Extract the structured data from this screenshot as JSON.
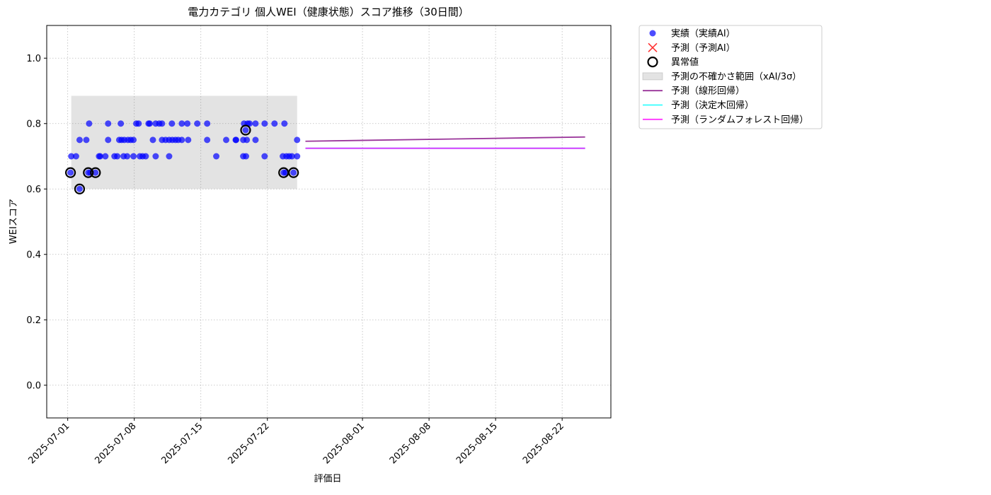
{
  "chart_data": {
    "type": "scatter",
    "title": "電力カテゴリ 個人WEI（健康状態）スコア推移（30日間）",
    "x_label": "評価日",
    "y_label": "WEIスコア",
    "xlim": [
      "2025-06-28 19:00",
      "2025-08-27 03:00"
    ],
    "xticks": [
      "2025-07-01",
      "2025-07-08",
      "2025-07-15",
      "2025-07-22",
      "2025-08-01",
      "2025-08-08",
      "2025-08-15",
      "2025-08-22"
    ],
    "ylim": [
      -0.1,
      1.1
    ],
    "yticks": [
      {
        "value": 0,
        "label": "0.0"
      },
      0.2,
      0.4,
      0.6,
      0.8,
      {
        "value": 1,
        "label": "1.0"
      }
    ],
    "grid": true,
    "legend": "outside upper right",
    "series": [
      {
        "name": "実績（実績AI）",
        "kind": "scatter",
        "color": "#0000ff",
        "x": [
          "2025-07-01 07:00",
          "2025-07-01 09:00",
          "2025-07-01 21:00",
          "2025-07-02 06:00",
          "2025-07-02 06:00",
          "2025-07-02 23:00",
          "2025-07-03 06:00",
          "2025-07-03 04:00",
          "2025-07-03 09:00",
          "2025-07-03 22:00",
          "2025-07-04 07:00",
          "2025-07-04 10:00",
          "2025-07-04 23:00",
          "2025-07-05 06:00",
          "2025-07-05 06:00",
          "2025-07-05 22:00",
          "2025-07-06 05:00",
          "2025-07-06 10:00",
          "2025-07-06 14:00",
          "2025-07-06 16:00",
          "2025-07-06 21:00",
          "2025-07-06 23:00",
          "2025-07-07 06:00",
          "2025-07-07 08:00",
          "2025-07-07 15:00",
          "2025-07-07 22:00",
          "2025-07-07 22:00",
          "2025-07-08 05:00",
          "2025-07-08 11:00",
          "2025-07-08 14:00",
          "2025-07-08 21:00",
          "2025-07-09 05:00",
          "2025-07-09 12:00",
          "2025-07-09 15:00",
          "2025-07-09 23:00",
          "2025-07-10 06:00",
          "2025-07-10 06:00",
          "2025-07-10 15:00",
          "2025-07-10 22:00",
          "2025-07-10 22:00",
          "2025-07-11 07:00",
          "2025-07-11 16:00",
          "2025-07-11 16:00",
          "2025-07-11 23:00",
          "2025-07-12 00:00",
          "2025-07-12 08:00",
          "2025-07-12 15:00",
          "2025-07-13 00:00",
          "2025-07-13 00:00",
          "2025-07-13 14:00",
          "2025-07-13 16:00",
          "2025-07-14 15:00",
          "2025-07-15 16:00",
          "2025-07-15 16:00",
          "2025-07-16 15:00",
          "2025-07-17 16:00",
          "2025-07-18 16:00",
          "2025-07-18 17:00",
          "2025-07-19 11:00",
          "2025-07-19 11:00",
          "2025-07-19 13:00",
          "2025-07-19 17:00",
          "2025-07-19 18:00",
          "2025-07-19 20:00",
          "2025-07-19 22:00",
          "2025-07-20 03:00",
          "2025-07-20 18:00",
          "2025-07-20 18:00",
          "2025-07-21 17:00",
          "2025-07-21 17:00",
          "2025-07-22 18:00",
          "2025-07-23 15:00",
          "2025-07-23 17:00",
          "2025-07-23 19:00",
          "2025-07-23 22:00",
          "2025-07-24 00:00",
          "2025-07-24 07:00",
          "2025-07-24 14:00",
          "2025-07-24 18:00",
          "2025-07-25 03:00",
          "2025-07-25 03:00"
        ],
        "values": [
          0.65,
          0.7,
          0.7,
          0.75,
          0.6,
          0.75,
          0.8,
          0.65,
          0.65,
          0.65,
          0.7,
          0.7,
          0.7,
          0.8,
          0.75,
          0.7,
          0.7,
          0.75,
          0.8,
          0.75,
          0.7,
          0.75,
          0.7,
          0.75,
          0.75,
          0.75,
          0.7,
          0.8,
          0.8,
          0.7,
          0.7,
          0.7,
          0.8,
          0.8,
          0.75,
          0.7,
          0.8,
          0.8,
          0.8,
          0.75,
          0.75,
          0.7,
          0.75,
          0.8,
          0.75,
          0.75,
          0.75,
          0.8,
          0.75,
          0.8,
          0.75,
          0.8,
          0.8,
          0.75,
          0.7,
          0.75,
          0.75,
          0.75,
          0.7,
          0.75,
          0.8,
          0.78,
          0.7,
          0.75,
          0.8,
          0.8,
          0.8,
          0.75,
          0.8,
          0.7,
          0.8,
          0.7,
          0.65,
          0.8,
          0.65,
          0.7,
          0.7,
          0.7,
          0.65,
          0.7,
          0.75
        ]
      },
      {
        "name": "予測（予測AI）",
        "kind": "cross",
        "color": "#ff0000",
        "x": [],
        "values": []
      },
      {
        "name": "異常値",
        "kind": "ring",
        "color": "#000000",
        "x": [
          "2025-07-01 07:00",
          "2025-07-02 06:00",
          "2025-07-03 04:00",
          "2025-07-03 22:00",
          "2025-07-19 17:00",
          "2025-07-23 17:00",
          "2025-07-24 18:00"
        ],
        "values": [
          0.65,
          0.6,
          0.65,
          0.65,
          0.78,
          0.65,
          0.65
        ]
      },
      {
        "name": "予測の不確かさ範囲（xAI/3σ）",
        "kind": "band",
        "color": "#808080",
        "x": [
          "2025-07-01 09:00",
          "2025-07-25 03:00"
        ],
        "lower": [
          0.6,
          0.6
        ],
        "upper": [
          0.885,
          0.885
        ]
      },
      {
        "name": "予測（線形回帰）",
        "kind": "line",
        "color": "#800080",
        "x": [
          "2025-07-26 00:00",
          "2025-08-24 10:00"
        ],
        "values": [
          0.746,
          0.759
        ]
      },
      {
        "name": "予測（決定木回帰）",
        "kind": "line",
        "color": "#00ffff",
        "x": [
          "2025-07-26 00:00",
          "2025-08-24 10:00"
        ],
        "values": [
          0.7245,
          0.7245
        ]
      },
      {
        "name": "予測（ランダムフォレスト回帰）",
        "kind": "line",
        "color": "#ff00ff",
        "x": [
          "2025-07-26 00:00",
          "2025-08-24 10:00"
        ],
        "values": [
          0.7245,
          0.7245
        ]
      }
    ]
  }
}
